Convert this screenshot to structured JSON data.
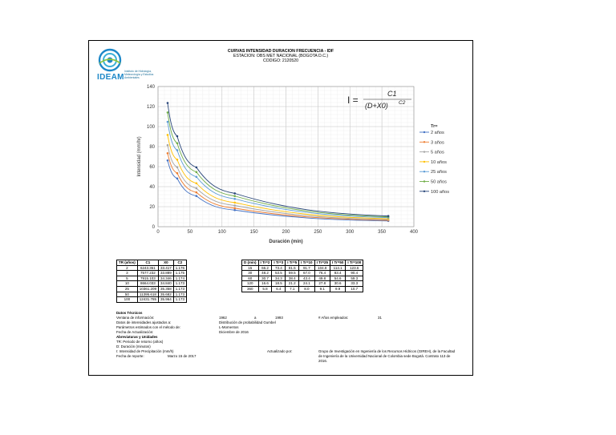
{
  "header": {
    "title": "CURVAS INTENSIDAD DURACION FRECUENCIA - IDF",
    "station": "ESTACION: OBS MET NACIONAL (BOGOTA D.C.)",
    "code": "CODIGO: 2120520"
  },
  "logo": {
    "name": "IDEAM",
    "subtitle": "Instituto de Hidrología, Meteorología y Estudios Ambientales"
  },
  "formula": {
    "lhs": "I =",
    "numerator": "C1",
    "denominator": "(D+X0)",
    "exponent": "C2"
  },
  "chart_data": {
    "type": "line",
    "xlabel": "Duración (min)",
    "ylabel": "Intensidad (mm/hr)",
    "xlim": [
      0,
      400
    ],
    "ylim": [
      0,
      140
    ],
    "xticks": [
      0,
      50,
      100,
      150,
      200,
      250,
      300,
      350,
      400
    ],
    "yticks": [
      0,
      20,
      40,
      60,
      80,
      100,
      120,
      140
    ],
    "grid": true,
    "legend_title": "Tr=",
    "legend_position": "right",
    "x": [
      15,
      30,
      60,
      120,
      360
    ],
    "series": [
      {
        "name": "2 años",
        "color": "#4472c4",
        "values": [
          66.2,
          48.2,
          30.7,
          16.6,
          5.8
        ]
      },
      {
        "name": "3 años",
        "color": "#ed7d31",
        "values": [
          73.4,
          53.5,
          34.3,
          18.5,
          6.4
        ]
      },
      {
        "name": "5 años",
        "color": "#a5a5a5",
        "values": [
          81.5,
          59.5,
          38.4,
          21.2,
          7.1
        ]
      },
      {
        "name": "10 años",
        "color": "#ffc000",
        "values": [
          91.7,
          67.0,
          43.4,
          24.1,
          8.0
        ]
      },
      {
        "name": "25 años",
        "color": "#5b9bd5",
        "values": [
          104.8,
          76.4,
          49.8,
          27.8,
          9.1
        ]
      },
      {
        "name": "50 años",
        "color": "#70ad47",
        "values": [
          114.1,
          83.4,
          54.6,
          30.6,
          9.9
        ]
      },
      {
        "name": "100 años",
        "color": "#264478",
        "values": [
          123.6,
          90.4,
          59.3,
          33.3,
          10.7
        ]
      }
    ]
  },
  "params_table": {
    "headers": [
      "TR (años)",
      "C1",
      "X0",
      "C2"
    ],
    "rows": [
      [
        "2",
        "6243.361",
        "33.417",
        "1.176"
      ],
      [
        "3",
        "7577.232",
        "33.889",
        "1.175"
      ],
      [
        "5",
        "7915.103",
        "34.346",
        "1.174"
      ],
      [
        "10",
        "8664.033",
        "34.840",
        "1.173"
      ],
      [
        "25",
        "10361.209",
        "35.358",
        "1.173"
      ],
      [
        "50",
        "11395.618",
        "35.682",
        "1.173"
      ],
      [
        "100",
        "12431.785",
        "35.964",
        "1.173"
      ]
    ]
  },
  "intensity_table": {
    "headers": [
      "D (min)",
      "I Tr=2",
      "I Tr=3",
      "I Tr=5",
      "I Tr=10",
      "I Tr=25",
      "I Tr=50",
      "I Tr=100"
    ],
    "rows": [
      [
        "15",
        "66.2",
        "73.4",
        "81.5",
        "91.7",
        "104.8",
        "114.1",
        "123.6"
      ],
      [
        "30",
        "48.2",
        "53.5",
        "59.5",
        "67.0",
        "76.4",
        "83.4",
        "90.4"
      ],
      [
        "60",
        "30.7",
        "34.3",
        "38.4",
        "43.4",
        "49.8",
        "54.6",
        "59.3"
      ],
      [
        "120",
        "16.6",
        "18.5",
        "21.2",
        "24.1",
        "27.8",
        "30.6",
        "33.3"
      ],
      [
        "360",
        "5.8",
        "6.4",
        "7.1",
        "8.0",
        "9.1",
        "9.9",
        "10.7"
      ]
    ]
  },
  "info": {
    "tech_title": "Datos Técnicos",
    "window_label": "Ventana de información:",
    "window_start": "1962",
    "window_sep": "a",
    "window_end": "1993",
    "years_label": "# Años empleados:",
    "years_value": "31",
    "adjusted_label": "Datos de intensidades ajustados a:",
    "adjusted_value": "Distribución de probabilidad Gumbel",
    "params_label": "Parámetros estimados con el método de:",
    "params_value": "L-Momentos",
    "update_label": "Fecha de Actualización:",
    "update_value": "Diciembre de 2016",
    "abbr_title": "Abreviaturas y Unidades",
    "abbr_tr": "TR: Periodo de retorno (años)",
    "abbr_d": "D: Duración (minutos)",
    "abbr_i": "I: Intensidad de Precipitación (mm/h)",
    "report_label": "Fecha de reporte:",
    "report_value": "Marzo 15 de 2017",
    "updated_by_label": "Actualizado por:",
    "updated_by_l1": "Grupo de Investigación en Ingeniería de los Recursos Hídricos (GIREH), de la Facultad",
    "updated_by_l2": "de Ingeniería de la Universidad Nacional de Colombia sede Bogotá. Contrato 113 de",
    "updated_by_l3": "2016."
  }
}
